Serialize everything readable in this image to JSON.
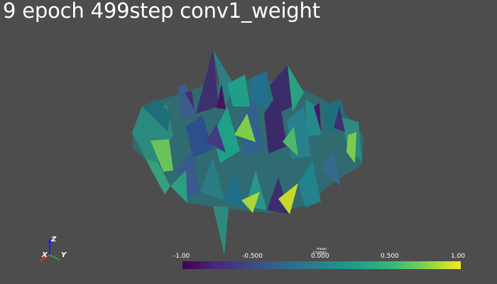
{
  "window": {
    "title": "9 epoch 499step conv1_weight"
  },
  "axes_widget": {
    "x_label": "X",
    "y_label": "Y",
    "z_label": "Z",
    "x_color": "#e03030",
    "y_color": "#2f9e44",
    "z_color": "#1a1aff"
  },
  "scalar_bar": {
    "title_line1": "mean",
    "title_line2": "Coolors",
    "ticks": [
      "-1.00",
      "-0.500",
      "0.000",
      "0.500",
      "1.00"
    ],
    "colormap": "viridis",
    "colors": [
      "#440154",
      "#3e4989",
      "#26828e",
      "#35b779",
      "#fde725"
    ]
  },
  "colors": {
    "background": "#4d4d4d",
    "text": "#ffffff"
  }
}
